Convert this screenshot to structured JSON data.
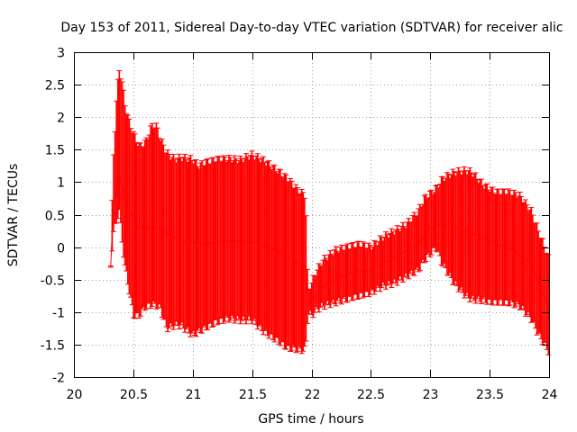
{
  "chart_data": {
    "type": "errorbar",
    "title": "Day 153 of 2011, Sidereal Day-to-day VTEC variation (SDTVAR) for receiver alic",
    "xlabel": "GPS time / hours",
    "ylabel": "SDTVAR / TECUs",
    "xlim": [
      20,
      24
    ],
    "ylim": [
      -2,
      3
    ],
    "grid": true,
    "series_color": "#ff0000",
    "x_ticks": [
      {
        "value": 20,
        "label": "20"
      },
      {
        "value": 20.5,
        "label": "20.5"
      },
      {
        "value": 21,
        "label": "21"
      },
      {
        "value": 21.5,
        "label": "21.5"
      },
      {
        "value": 22,
        "label": "22"
      },
      {
        "value": 22.5,
        "label": "22.5"
      },
      {
        "value": 23,
        "label": "23"
      },
      {
        "value": 23.5,
        "label": "23.5"
      },
      {
        "value": 24,
        "label": "24"
      }
    ],
    "y_ticks": [
      {
        "value": -2,
        "label": "-2"
      },
      {
        "value": -1.5,
        "label": "-1.5"
      },
      {
        "value": -1,
        "label": "-1"
      },
      {
        "value": -0.5,
        "label": "-0.5"
      },
      {
        "value": 0,
        "label": "0"
      },
      {
        "value": 0.5,
        "label": "0.5"
      },
      {
        "value": 1,
        "label": "1"
      },
      {
        "value": 1.5,
        "label": "1.5"
      },
      {
        "value": 2,
        "label": "2"
      },
      {
        "value": 2.5,
        "label": "2.5"
      },
      {
        "value": 3,
        "label": "3"
      }
    ],
    "upper_envelope": [
      [
        20.31,
        -0.3
      ],
      [
        20.33,
        1.3
      ],
      [
        20.36,
        2.3
      ],
      [
        20.38,
        2.75
      ],
      [
        20.4,
        2.6
      ],
      [
        20.43,
        2.2
      ],
      [
        20.46,
        1.95
      ],
      [
        20.5,
        1.75
      ],
      [
        20.55,
        1.55
      ],
      [
        20.6,
        1.6
      ],
      [
        20.66,
        1.88
      ],
      [
        20.7,
        1.85
      ],
      [
        20.73,
        1.65
      ],
      [
        20.78,
        1.45
      ],
      [
        20.85,
        1.35
      ],
      [
        20.9,
        1.38
      ],
      [
        21.0,
        1.35
      ],
      [
        21.05,
        1.25
      ],
      [
        21.1,
        1.3
      ],
      [
        21.2,
        1.35
      ],
      [
        21.3,
        1.36
      ],
      [
        21.4,
        1.34
      ],
      [
        21.5,
        1.42
      ],
      [
        21.6,
        1.33
      ],
      [
        21.7,
        1.2
      ],
      [
        21.8,
        1.05
      ],
      [
        21.9,
        0.85
      ],
      [
        21.95,
        0.8
      ],
      [
        21.97,
        -0.7
      ],
      [
        22.0,
        -0.55
      ],
      [
        22.05,
        -0.35
      ],
      [
        22.1,
        -0.2
      ],
      [
        22.2,
        -0.05
      ],
      [
        22.3,
        0.0
      ],
      [
        22.4,
        0.05
      ],
      [
        22.5,
        0.0
      ],
      [
        22.6,
        0.15
      ],
      [
        22.7,
        0.25
      ],
      [
        22.8,
        0.35
      ],
      [
        22.9,
        0.55
      ],
      [
        22.95,
        0.75
      ],
      [
        23.0,
        0.82
      ],
      [
        23.05,
        0.9
      ],
      [
        23.1,
        1.05
      ],
      [
        23.2,
        1.15
      ],
      [
        23.3,
        1.18
      ],
      [
        23.35,
        1.15
      ],
      [
        23.45,
        0.95
      ],
      [
        23.55,
        0.85
      ],
      [
        23.65,
        0.85
      ],
      [
        23.75,
        0.8
      ],
      [
        23.85,
        0.55
      ],
      [
        23.9,
        0.3
      ],
      [
        23.95,
        0.05
      ],
      [
        24.0,
        -0.2
      ]
    ],
    "lower_envelope": [
      [
        20.31,
        -0.3
      ],
      [
        20.33,
        0.2
      ],
      [
        20.36,
        0.4
      ],
      [
        20.38,
        0.6
      ],
      [
        20.4,
        0.2
      ],
      [
        20.43,
        -0.3
      ],
      [
        20.46,
        -0.6
      ],
      [
        20.5,
        -1.05
      ],
      [
        20.55,
        -1.05
      ],
      [
        20.6,
        -0.92
      ],
      [
        20.66,
        -0.88
      ],
      [
        20.7,
        -0.9
      ],
      [
        20.73,
        -0.95
      ],
      [
        20.78,
        -1.25
      ],
      [
        20.85,
        -1.2
      ],
      [
        20.9,
        -1.2
      ],
      [
        21.0,
        -1.35
      ],
      [
        21.05,
        -1.3
      ],
      [
        21.1,
        -1.25
      ],
      [
        21.2,
        -1.15
      ],
      [
        21.3,
        -1.1
      ],
      [
        21.4,
        -1.12
      ],
      [
        21.5,
        -1.12
      ],
      [
        21.6,
        -1.3
      ],
      [
        21.7,
        -1.42
      ],
      [
        21.8,
        -1.55
      ],
      [
        21.9,
        -1.58
      ],
      [
        21.95,
        -1.58
      ],
      [
        21.97,
        -1.0
      ],
      [
        22.0,
        -1.05
      ],
      [
        22.05,
        -0.95
      ],
      [
        22.1,
        -0.9
      ],
      [
        22.2,
        -0.85
      ],
      [
        22.3,
        -0.8
      ],
      [
        22.4,
        -0.75
      ],
      [
        22.5,
        -0.7
      ],
      [
        22.6,
        -0.6
      ],
      [
        22.7,
        -0.55
      ],
      [
        22.8,
        -0.45
      ],
      [
        22.9,
        -0.35
      ],
      [
        22.95,
        -0.2
      ],
      [
        23.0,
        -0.1
      ],
      [
        23.05,
        0.0
      ],
      [
        23.1,
        -0.25
      ],
      [
        23.2,
        -0.55
      ],
      [
        23.3,
        -0.75
      ],
      [
        23.35,
        -0.8
      ],
      [
        23.45,
        -0.82
      ],
      [
        23.55,
        -0.85
      ],
      [
        23.65,
        -0.85
      ],
      [
        23.75,
        -0.9
      ],
      [
        23.85,
        -1.1
      ],
      [
        23.9,
        -1.3
      ],
      [
        23.95,
        -1.45
      ],
      [
        24.0,
        -1.62
      ]
    ],
    "center_line": [
      [
        20.31,
        -0.3
      ],
      [
        20.33,
        0.6
      ],
      [
        20.38,
        1.1
      ],
      [
        20.45,
        0.6
      ],
      [
        20.55,
        0.3
      ],
      [
        20.7,
        0.3
      ],
      [
        20.9,
        0.1
      ],
      [
        21.1,
        0.05
      ],
      [
        21.3,
        0.1
      ],
      [
        21.5,
        0.08
      ],
      [
        21.7,
        -0.05
      ],
      [
        21.9,
        -0.25
      ],
      [
        21.95,
        -0.3
      ],
      [
        21.97,
        -0.9
      ],
      [
        22.1,
        -0.6
      ],
      [
        22.3,
        -0.4
      ],
      [
        22.5,
        -0.35
      ],
      [
        22.7,
        -0.15
      ],
      [
        22.9,
        0.05
      ],
      [
        23.0,
        0.3
      ],
      [
        23.1,
        0.35
      ],
      [
        23.3,
        0.25
      ],
      [
        23.5,
        0.1
      ],
      [
        23.7,
        -0.05
      ],
      [
        23.85,
        -0.25
      ],
      [
        24.0,
        -0.95
      ]
    ],
    "bar_step": 0.012
  }
}
